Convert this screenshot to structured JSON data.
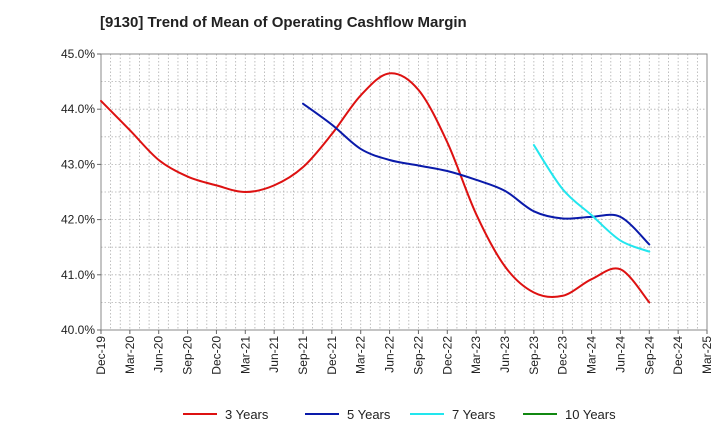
{
  "chart_data": {
    "type": "line",
    "title": "[9130]  Trend of Mean of Operating Cashflow Margin",
    "xlabel": "",
    "ylabel": "",
    "x_ticks": [
      "Dec-19",
      "Mar-20",
      "Jun-20",
      "Sep-20",
      "Dec-20",
      "Mar-21",
      "Jun-21",
      "Sep-21",
      "Dec-21",
      "Mar-22",
      "Jun-22",
      "Sep-22",
      "Dec-22",
      "Mar-23",
      "Jun-23",
      "Sep-23",
      "Dec-23",
      "Mar-24",
      "Jun-24",
      "Sep-24",
      "Dec-24",
      "Mar-25"
    ],
    "y_ticks": [
      "40.0%",
      "41.0%",
      "42.0%",
      "43.0%",
      "44.0%",
      "45.0%"
    ],
    "ylim": [
      40.0,
      45.0
    ],
    "y_unit": "%",
    "grid": "dotted",
    "legend_position": "bottom",
    "series": [
      {
        "name": "3 Years",
        "color": "#dd1111",
        "points": [
          [
            "Dec-19",
            44.15
          ],
          [
            "Mar-20",
            43.62
          ],
          [
            "Jun-20",
            43.08
          ],
          [
            "Sep-20",
            42.78
          ],
          [
            "Dec-20",
            42.62
          ],
          [
            "Mar-21",
            42.5
          ],
          [
            "Jun-21",
            42.62
          ],
          [
            "Sep-21",
            42.95
          ],
          [
            "Dec-21",
            43.55
          ],
          [
            "Mar-22",
            44.25
          ],
          [
            "Jun-22",
            44.65
          ],
          [
            "Sep-22",
            44.35
          ],
          [
            "Dec-22",
            43.4
          ],
          [
            "Mar-23",
            42.1
          ],
          [
            "Jun-23",
            41.15
          ],
          [
            "Sep-23",
            40.68
          ],
          [
            "Dec-23",
            40.62
          ],
          [
            "Mar-24",
            40.92
          ],
          [
            "Jun-24",
            41.1
          ],
          [
            "Sep-24",
            40.5
          ]
        ]
      },
      {
        "name": "5 Years",
        "color": "#0a1aaa",
        "points": [
          [
            "Sep-21",
            44.1
          ],
          [
            "Dec-21",
            43.72
          ],
          [
            "Mar-22",
            43.28
          ],
          [
            "Jun-22",
            43.08
          ],
          [
            "Sep-22",
            42.98
          ],
          [
            "Dec-22",
            42.88
          ],
          [
            "Mar-23",
            42.72
          ],
          [
            "Jun-23",
            42.52
          ],
          [
            "Sep-23",
            42.15
          ],
          [
            "Dec-23",
            42.02
          ],
          [
            "Mar-24",
            42.05
          ],
          [
            "Jun-24",
            42.05
          ],
          [
            "Sep-24",
            41.55
          ]
        ]
      },
      {
        "name": "7 Years",
        "color": "#22e6ee",
        "points": [
          [
            "Sep-23",
            43.35
          ],
          [
            "Dec-23",
            42.55
          ],
          [
            "Mar-24",
            42.08
          ],
          [
            "Jun-24",
            41.62
          ],
          [
            "Sep-24",
            41.42
          ]
        ]
      },
      {
        "name": "10 Years",
        "color": "#118811",
        "points": []
      }
    ]
  }
}
